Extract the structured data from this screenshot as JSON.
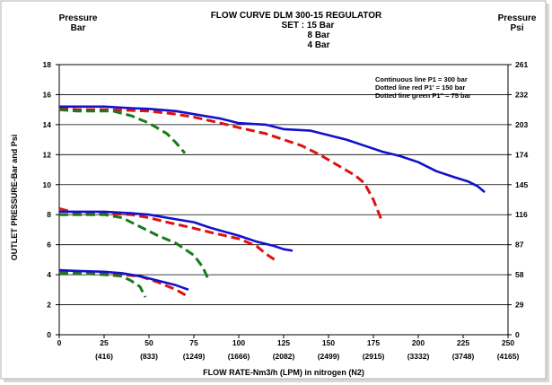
{
  "chart_data": {
    "type": "line",
    "title_lines": [
      "FLOW CURVE DLM 300-15 REGULATOR",
      "SET : 15 Bar",
      "8 Bar",
      "4 Bar"
    ],
    "ylabel_left_top": [
      "Pressure",
      "Bar"
    ],
    "ylabel_right_top": [
      "Pressure",
      "Psi"
    ],
    "ylabel": "OUTLET PRESSURE-Bar and Psi",
    "xlabel": "FLOW RATE-Nm3/h (LPM) in nitrogen (N2)",
    "xlim": [
      0,
      250
    ],
    "ylim": [
      0,
      18
    ],
    "x_ticks": [
      "0",
      "25",
      "50",
      "75",
      "100",
      "125",
      "150",
      "175",
      "200",
      "225",
      "250"
    ],
    "x_ticks_lpm": [
      "(416)",
      "(833)",
      "(1249)",
      "(1666)",
      "(2082)",
      "(2499)",
      "(2915)",
      "(3332)",
      "(3748)",
      "(4165)"
    ],
    "y_ticks_left": [
      "0",
      "2",
      "4",
      "6",
      "8",
      "10",
      "12",
      "14",
      "16",
      "18"
    ],
    "y_ticks_right": [
      "0",
      "29",
      "58",
      "87",
      "116",
      "145",
      "174",
      "203",
      "232",
      "261"
    ],
    "legend": [
      "Continuous line P1 = 300 bar",
      "Dotted line red  P1' = 150 bar",
      "Dotted line green P1'' = 75 bar"
    ],
    "legend_position": "top-right",
    "colors": {
      "p300": "#1111cc",
      "p150": "#e01010",
      "p75": "#1a7a1a"
    },
    "series": [
      {
        "name": "Continuous line P1 = 300 bar",
        "set": "15 Bar",
        "style": "solid",
        "x": [
          0,
          10,
          25,
          40,
          50,
          65,
          75,
          90,
          100,
          115,
          125,
          140,
          150,
          160,
          170,
          180,
          190,
          200,
          210,
          220,
          228,
          233,
          237
        ],
        "y": [
          15.2,
          15.2,
          15.2,
          15.1,
          15.05,
          14.9,
          14.7,
          14.4,
          14.1,
          14.0,
          13.7,
          13.6,
          13.3,
          13.0,
          12.6,
          12.2,
          11.9,
          11.5,
          10.9,
          10.5,
          10.2,
          9.9,
          9.5
        ]
      },
      {
        "name": "Dotted line red  P1' = 150 bar",
        "set": "15 Bar",
        "style": "dashed",
        "x": [
          0,
          10,
          25,
          40,
          50,
          65,
          75,
          90,
          100,
          115,
          125,
          135,
          145,
          155,
          165,
          170,
          175,
          180
        ],
        "y": [
          15.1,
          15.0,
          15.0,
          14.95,
          14.9,
          14.7,
          14.5,
          14.1,
          13.8,
          13.4,
          13.0,
          12.6,
          12.0,
          11.3,
          10.6,
          10.1,
          9.0,
          7.5
        ]
      },
      {
        "name": "Dotted line green P1'' = 75 bar",
        "set": "15 Bar",
        "style": "dashed",
        "x": [
          0,
          10,
          20,
          30,
          40,
          50,
          60,
          65,
          70
        ],
        "y": [
          15.0,
          14.9,
          14.9,
          14.9,
          14.6,
          14.1,
          13.4,
          12.8,
          12.1
        ]
      },
      {
        "name": "Continuous line P1 = 300 bar",
        "set": "8 Bar",
        "style": "solid",
        "x": [
          0,
          10,
          25,
          40,
          50,
          60,
          75,
          85,
          100,
          110,
          120,
          125,
          130
        ],
        "y": [
          8.2,
          8.2,
          8.2,
          8.1,
          8.0,
          7.8,
          7.5,
          7.1,
          6.6,
          6.2,
          5.9,
          5.7,
          5.6
        ]
      },
      {
        "name": "Dotted line red  P1' = 150 bar",
        "set": "8 Bar",
        "style": "dashed",
        "x": [
          0,
          10,
          25,
          40,
          50,
          60,
          75,
          85,
          100,
          110,
          115,
          120
        ],
        "y": [
          8.4,
          8.1,
          8.1,
          8.0,
          7.8,
          7.5,
          7.1,
          6.8,
          6.4,
          5.9,
          5.4,
          5.0
        ]
      },
      {
        "name": "Dotted line green P1'' = 75 bar",
        "set": "8 Bar",
        "style": "dashed",
        "x": [
          0,
          10,
          25,
          35,
          45,
          55,
          65,
          75,
          80,
          83
        ],
        "y": [
          8.0,
          8.0,
          8.0,
          7.8,
          7.2,
          6.6,
          6.1,
          5.3,
          4.5,
          3.7
        ]
      },
      {
        "name": "Continuous line P1 = 300 bar",
        "set": "4 Bar",
        "style": "solid",
        "x": [
          0,
          10,
          25,
          35,
          45,
          55,
          65,
          72
        ],
        "y": [
          4.3,
          4.25,
          4.2,
          4.1,
          3.9,
          3.6,
          3.3,
          3.0
        ]
      },
      {
        "name": "Dotted line red  P1' = 150 bar",
        "set": "4 Bar",
        "style": "dashed",
        "x": [
          0,
          10,
          25,
          35,
          45,
          55,
          65,
          71
        ],
        "y": [
          4.2,
          4.2,
          4.1,
          4.0,
          3.9,
          3.5,
          3.0,
          2.6
        ]
      },
      {
        "name": "Dotted line green P1'' = 75 bar",
        "set": "4 Bar",
        "style": "dashed",
        "x": [
          0,
          10,
          25,
          35,
          40,
          45,
          48
        ],
        "y": [
          4.1,
          4.1,
          4.0,
          3.9,
          3.6,
          3.2,
          2.5
        ]
      }
    ]
  }
}
